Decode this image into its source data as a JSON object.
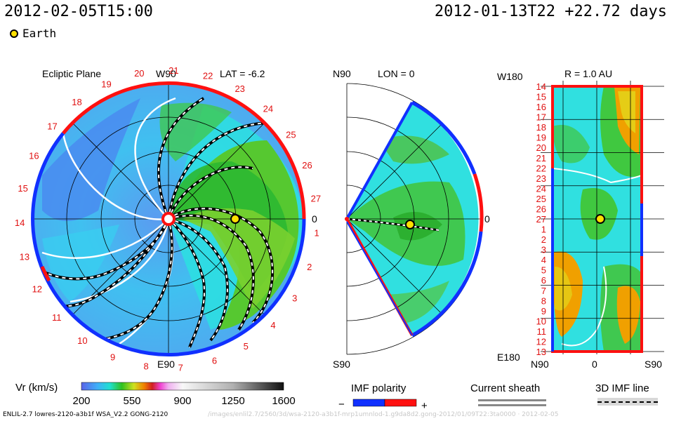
{
  "header": {
    "datetime": "2012-02-05T15:00",
    "run_info": "2012-01-13T22 +22.72 days"
  },
  "legend": {
    "earth_label": "Earth"
  },
  "ecliptic": {
    "title": "Ecliptic Plane",
    "top_label": "W90",
    "bottom_label": "E90",
    "right_label": "0",
    "lat_label": "LAT = -6.2",
    "carrington_numbers": [
      "1",
      "2",
      "3",
      "4",
      "5",
      "6",
      "7",
      "8",
      "9",
      "10",
      "11",
      "12",
      "13",
      "14",
      "15",
      "16",
      "17",
      "18",
      "19",
      "20",
      "21",
      "22",
      "23",
      "24",
      "25",
      "26",
      "27"
    ]
  },
  "meridional": {
    "top_label": "N90",
    "bottom_label": "S90",
    "right_label": "0",
    "lon_label": "LON = 0"
  },
  "sphere": {
    "title": "R = 1.0 AU",
    "top_left_label": "W180",
    "bottom_left_label": "E180",
    "x_labels": [
      "N90",
      "0",
      "S90"
    ],
    "row_labels": [
      "14",
      "15",
      "16",
      "17",
      "18",
      "19",
      "20",
      "21",
      "22",
      "23",
      "24",
      "25",
      "26",
      "27",
      "1",
      "2",
      "3",
      "4",
      "5",
      "6",
      "7",
      "8",
      "9",
      "10",
      "11",
      "12",
      "13"
    ]
  },
  "colorbar": {
    "label": "Vr (km/s)",
    "ticks": [
      "200",
      "550",
      "900",
      "1250",
      "1600"
    ],
    "min": 200,
    "max": 1600
  },
  "keys": {
    "imf_title": "IMF polarity",
    "imf_minus": "−",
    "imf_plus": "+",
    "sheath_title": "Current sheath",
    "imf3d_title": "3D IMF line"
  },
  "colors": {
    "positive": "#ff1010",
    "negative": "#1030ff",
    "slow": "#30e8e8",
    "medium": "#40c820",
    "fast": "#f0a000",
    "earth": "#ffe000"
  },
  "footer": {
    "left": "ENLIL-2.7 lowres-2120-a3b1f WSA_V2.2 GONG-2120",
    "right": "/images/enlil2.7/2560/3d/wsa-2120-a3b1f-mrp1umnlod-1.g9da8d2.gong-2012/01/09T22:3ta0000 · 2012-02-05"
  },
  "chart_data": [
    {
      "type": "heatmap",
      "name": "ecliptic_plane",
      "title": "Ecliptic Plane",
      "variable": "Vr (km/s)",
      "projection": "polar",
      "range": [
        200,
        1600
      ],
      "radial_extent_AU": 2,
      "earth_longitude_deg": 0,
      "earth_radius_AU": 1.0
    },
    {
      "type": "heatmap",
      "name": "meridional_plane",
      "variable": "Vr (km/s)",
      "lon_deg": 0,
      "latitude_range_deg": [
        -60,
        60
      ]
    },
    {
      "type": "heatmap",
      "name": "sphere_1AU",
      "variable": "Vr (km/s)",
      "radius_AU": 1.0,
      "x_range": [
        "N90",
        "S90"
      ],
      "y_range": [
        "W180",
        "E180"
      ]
    }
  ]
}
